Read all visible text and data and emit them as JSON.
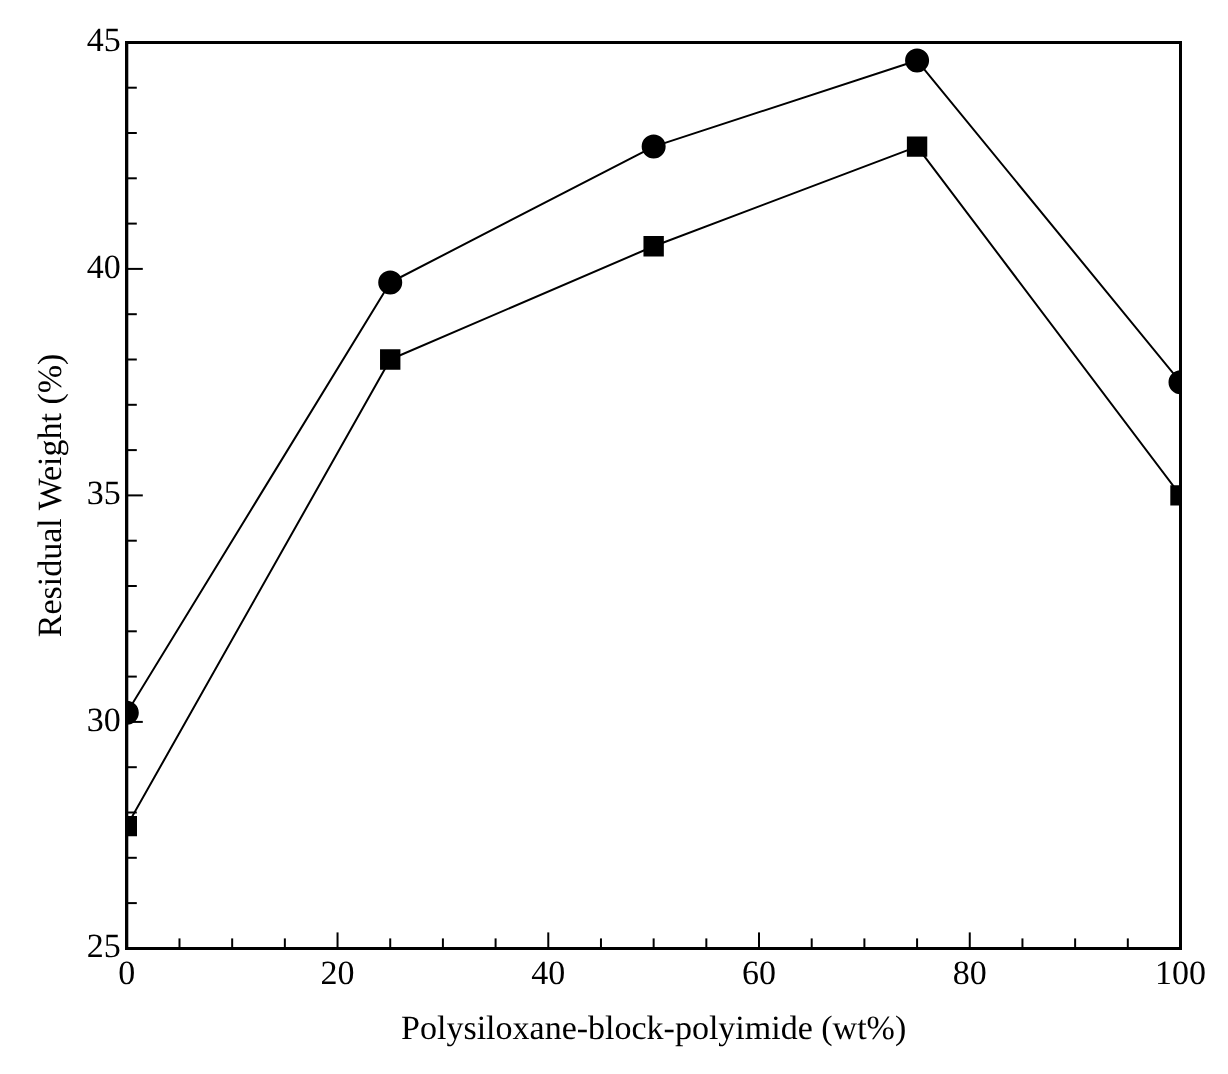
{
  "chart_data": {
    "type": "line",
    "xlabel": "Polysiloxane-block-polyimide (wt%)",
    "ylabel": "Residual Weight (%)",
    "x": [
      0,
      25,
      50,
      75,
      100
    ],
    "series": [
      {
        "color": "#000000",
        "marker": "circle",
        "values": [
          30.2,
          39.7,
          42.7,
          44.6,
          37.5
        ]
      },
      {
        "color": "#000000",
        "marker": "square",
        "values": [
          27.7,
          38.0,
          40.5,
          42.7,
          35.0
        ]
      }
    ],
    "xlim": [
      0,
      100
    ],
    "ylim": [
      25,
      45
    ],
    "xticks": [
      0,
      {
        "value": 5,
        "label": null
      },
      {
        "value": 10,
        "label": null
      },
      {
        "value": 15,
        "label": null
      },
      20,
      {
        "value": 25,
        "label": null
      },
      {
        "value": 30,
        "label": null
      },
      {
        "value": 35,
        "label": null
      },
      40,
      {
        "value": 45,
        "label": null
      },
      {
        "value": 50,
        "label": null
      },
      {
        "value": 55,
        "label": null
      },
      60,
      {
        "value": 65,
        "label": null
      },
      {
        "value": 70,
        "label": null
      },
      {
        "value": 75,
        "label": null
      },
      80,
      {
        "value": 85,
        "label": null
      },
      {
        "value": 90,
        "label": null
      },
      {
        "value": 95,
        "label": null
      },
      100
    ],
    "yticks": [
      25,
      {
        "value": 26,
        "label": null
      },
      {
        "value": 27,
        "label": null
      },
      {
        "value": 28,
        "label": null
      },
      {
        "value": 29,
        "label": null
      },
      30,
      {
        "value": 31,
        "label": null
      },
      {
        "value": 32,
        "label": null
      },
      {
        "value": 33,
        "label": null
      },
      {
        "value": 34,
        "label": null
      },
      35,
      {
        "value": 36,
        "label": null
      },
      {
        "value": 37,
        "label": null
      },
      {
        "value": 38,
        "label": null
      },
      {
        "value": 39,
        "label": null
      },
      40,
      {
        "value": 41,
        "label": null
      },
      {
        "value": 42,
        "label": null
      },
      {
        "value": 43,
        "label": null
      },
      {
        "value": 44,
        "label": null
      },
      45
    ],
    "grid": false,
    "legend": false,
    "line_style": "solid"
  }
}
